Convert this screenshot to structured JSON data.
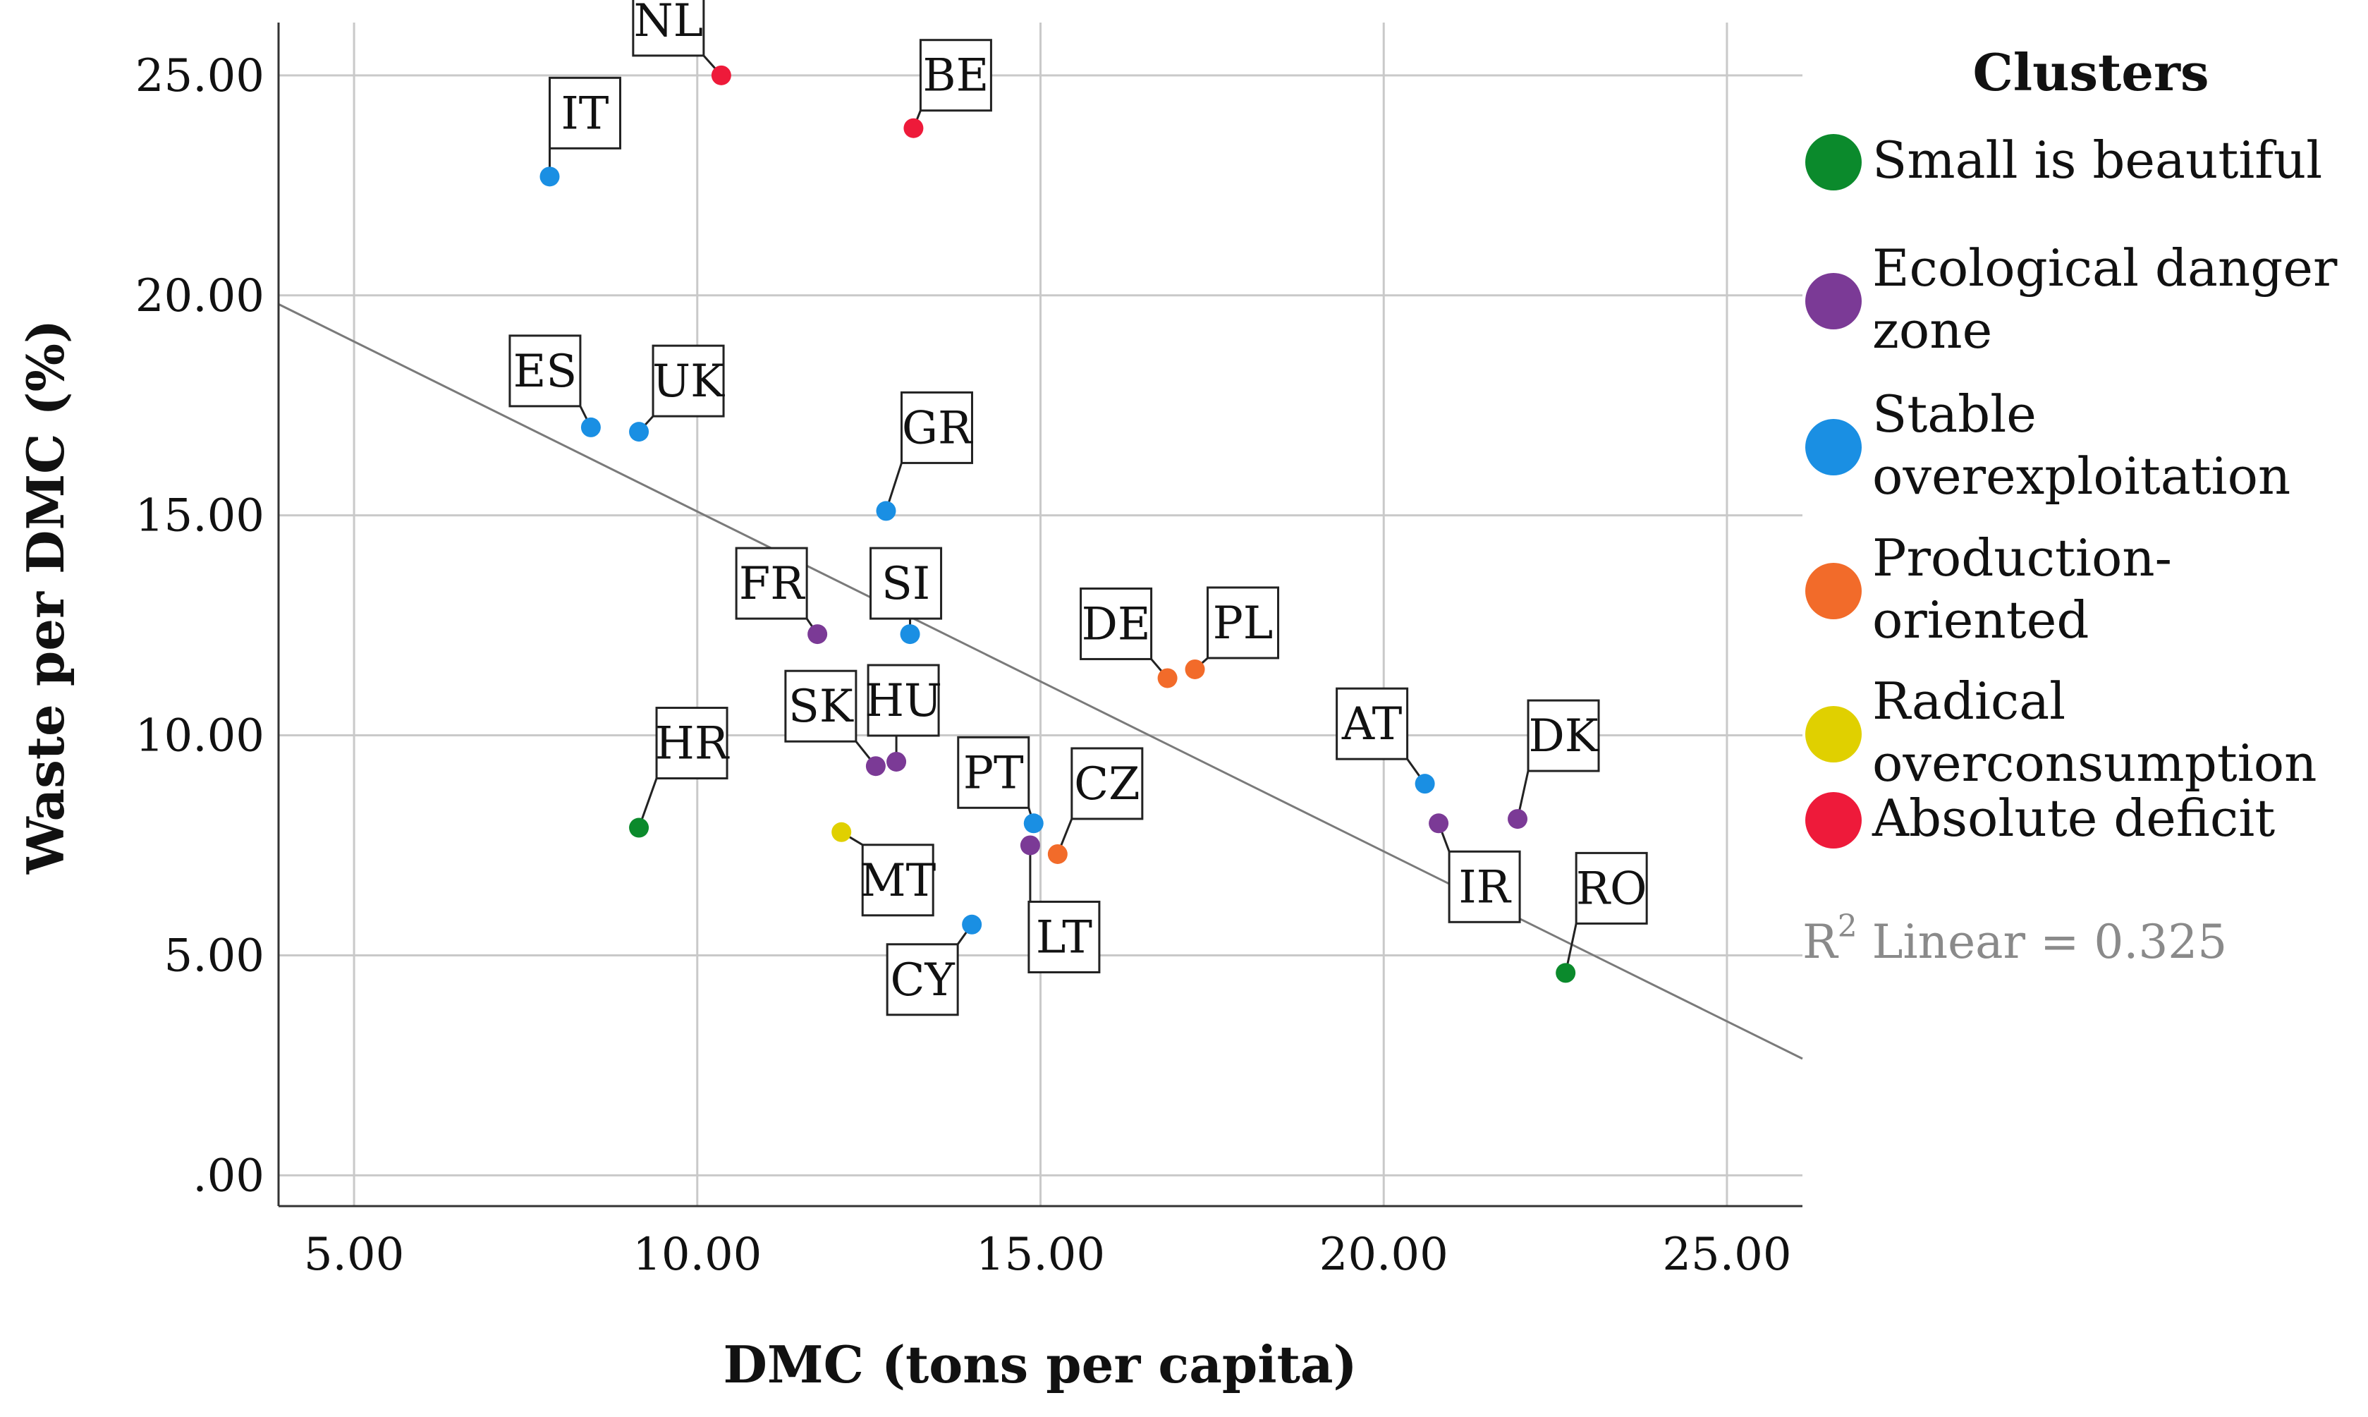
{
  "chart_data": {
    "type": "scatter",
    "title": "",
    "xlabel": "DMC (tons per capita)",
    "ylabel": "Waste per DMC (%)",
    "xlim": [
      3.9,
      26.1
    ],
    "ylim": [
      -0.7,
      26.2
    ],
    "x_ticks": [
      {
        "value": 5,
        "label": "5.00"
      },
      {
        "value": 10,
        "label": "10.00"
      },
      {
        "value": 15,
        "label": "15.00"
      },
      {
        "value": 20,
        "label": "20.00"
      },
      {
        "value": 25,
        "label": "25.00"
      }
    ],
    "y_ticks": [
      {
        "value": 0,
        "label": ".00"
      },
      {
        "value": 5,
        "label": "5.00"
      },
      {
        "value": 10,
        "label": "10.00"
      },
      {
        "value": 15,
        "label": "15.00"
      },
      {
        "value": 20,
        "label": "20.00"
      },
      {
        "value": 25,
        "label": "25.00"
      }
    ],
    "grid": true,
    "legend": {
      "title": "Clusters",
      "placement": "right",
      "entries": [
        {
          "label_lines": [
            "Small is beautiful"
          ],
          "color": "#0b8a2c"
        },
        {
          "label_lines": [
            "Ecological danger",
            "zone"
          ],
          "color": "#7b3a96"
        },
        {
          "label_lines": [
            "Stable",
            "overexploitation"
          ],
          "color": "#1a8fe3"
        },
        {
          "label_lines": [
            "Production-",
            "oriented"
          ],
          "color": "#f26b2a"
        },
        {
          "label_lines": [
            "Radical",
            "overconsumption"
          ],
          "color": "#e0d000"
        },
        {
          "label_lines": [
            "Absolute deficit"
          ],
          "color": "#ee1a3a"
        }
      ]
    },
    "fit": {
      "type": "linear",
      "label": "R",
      "label_sup": "2",
      "label_rest": " Linear = 0.325",
      "line_start": {
        "x": 3.9,
        "y": 19.8
      },
      "line_end": {
        "x": 26.1,
        "y": 2.65
      }
    },
    "points": [
      {
        "label": "IT",
        "x": 7.85,
        "y": 22.7,
        "cluster": "Stable overexploitation",
        "color": "#1a8fe3"
      },
      {
        "label": "NL",
        "x": 10.35,
        "y": 25.0,
        "cluster": "Absolute deficit",
        "color": "#ee1a3a"
      },
      {
        "label": "BE",
        "x": 13.15,
        "y": 23.8,
        "cluster": "Absolute deficit",
        "color": "#ee1a3a"
      },
      {
        "label": "ES",
        "x": 8.45,
        "y": 17.0,
        "cluster": "Stable overexploitation",
        "color": "#1a8fe3"
      },
      {
        "label": "UK",
        "x": 9.15,
        "y": 16.9,
        "cluster": "Stable overexploitation",
        "color": "#1a8fe3"
      },
      {
        "label": "GR",
        "x": 12.75,
        "y": 15.1,
        "cluster": "Stable overexploitation",
        "color": "#1a8fe3"
      },
      {
        "label": "FR",
        "x": 11.75,
        "y": 12.3,
        "cluster": "Ecological danger zone",
        "color": "#7b3a96"
      },
      {
        "label": "SI",
        "x": 13.1,
        "y": 12.3,
        "cluster": "Stable overexploitation",
        "color": "#1a8fe3"
      },
      {
        "label": "DE",
        "x": 16.85,
        "y": 11.3,
        "cluster": "Production-oriented",
        "color": "#f26b2a"
      },
      {
        "label": "PL",
        "x": 17.25,
        "y": 11.5,
        "cluster": "Production-oriented",
        "color": "#f26b2a"
      },
      {
        "label": "HR",
        "x": 9.15,
        "y": 7.9,
        "cluster": "Small is beautiful",
        "color": "#0b8a2c"
      },
      {
        "label": "SK",
        "x": 12.6,
        "y": 9.3,
        "cluster": "Ecological danger zone",
        "color": "#7b3a96"
      },
      {
        "label": "HU",
        "x": 12.9,
        "y": 9.4,
        "cluster": "Ecological danger zone",
        "color": "#7b3a96"
      },
      {
        "label": "PT",
        "x": 14.9,
        "y": 8.0,
        "cluster": "Stable overexploitation",
        "color": "#1a8fe3"
      },
      {
        "label": "LT",
        "x": 14.85,
        "y": 7.5,
        "cluster": "Ecological danger zone",
        "color": "#7b3a96"
      },
      {
        "label": "CZ",
        "x": 15.25,
        "y": 7.3,
        "cluster": "Production-oriented",
        "color": "#f26b2a"
      },
      {
        "label": "MT",
        "x": 12.1,
        "y": 7.8,
        "cluster": "Radical overconsumption",
        "color": "#e0d000"
      },
      {
        "label": "CY",
        "x": 14.0,
        "y": 5.7,
        "cluster": "Stable overexploitation",
        "color": "#1a8fe3"
      },
      {
        "label": "AT",
        "x": 20.6,
        "y": 8.9,
        "cluster": "Stable overexploitation",
        "color": "#1a8fe3"
      },
      {
        "label": "IR",
        "x": 20.8,
        "y": 8.0,
        "cluster": "Ecological danger zone",
        "color": "#7b3a96"
      },
      {
        "label": "DK",
        "x": 21.95,
        "y": 8.1,
        "cluster": "Ecological danger zone",
        "color": "#7b3a96"
      },
      {
        "label": "RO",
        "x": 22.65,
        "y": 4.6,
        "cluster": "Small is beautiful",
        "color": "#0b8a2c"
      }
    ]
  }
}
